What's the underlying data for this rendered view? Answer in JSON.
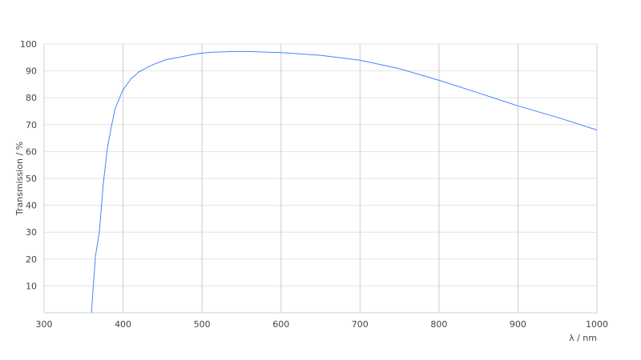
{
  "chart_data": {
    "type": "line",
    "title": "",
    "xlabel": "λ / nm",
    "ylabel": "Transmission / %",
    "xlim": [
      300,
      1000
    ],
    "ylim": [
      0,
      100
    ],
    "xticks": [
      300,
      400,
      500,
      600,
      700,
      800,
      900,
      1000
    ],
    "yticks": [
      10,
      20,
      30,
      40,
      50,
      60,
      70,
      80,
      90,
      100
    ],
    "grid": true,
    "line_color": "#4285f4",
    "series": [
      {
        "x": [
          360,
          365,
          370,
          375,
          380,
          385,
          390,
          400,
          410,
          420,
          430,
          440,
          455,
          470,
          490,
          500,
          510,
          540,
          560,
          580,
          600,
          650,
          700,
          750,
          800,
          850,
          900,
          950,
          1000
        ],
        "y": [
          0,
          21,
          30,
          48,
          61,
          69,
          76,
          83,
          87,
          89.6,
          91.2,
          92.6,
          94.2,
          95,
          96.2,
          96.6,
          96.9,
          97.2,
          97.2,
          97,
          96.8,
          95.8,
          94,
          90.8,
          86.5,
          81.8,
          77,
          72.7,
          68
        ]
      }
    ]
  }
}
